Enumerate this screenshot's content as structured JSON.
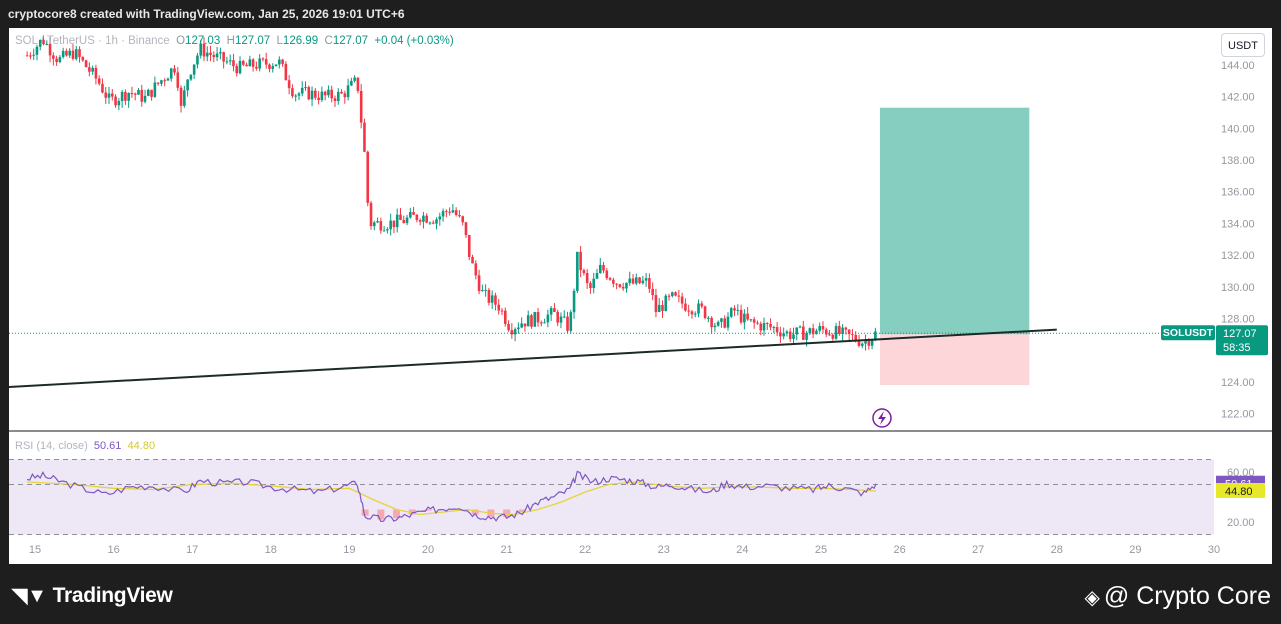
{
  "header": {
    "text": "cryptocore8 created with TradingView.com, Jan 25, 2026 19:01 UTC+6"
  },
  "legend": {
    "symbol": "SOL / TetherUS · 1h · Binance",
    "open_label": "O",
    "open": "127.03",
    "high_label": "H",
    "high": "127.07",
    "low_label": "L",
    "low": "126.99",
    "close_label": "C",
    "close": "127.07",
    "change": "+0.04 (+0.03%)"
  },
  "unit_button": "USDT",
  "price_tag": {
    "symbol": "SOLUSDT",
    "price": "127.07",
    "countdown": "58:35"
  },
  "rsi": {
    "label": "RSI (14, close)",
    "value": "50.61",
    "ma_value": "44.80",
    "levels": [
      "60.00",
      "20.00"
    ]
  },
  "footer": {
    "tv_logo": "TradingView",
    "watermark": "@ Crypto Core"
  },
  "colors": {
    "up": "#089981",
    "down": "#f23645",
    "rsi_line": "#7e57c2",
    "rsi_ma": "#e6d43a",
    "target_zone": "#86cec0",
    "stop_zone": "#fdd6da",
    "trendline": "#1c2b26",
    "price_tag": "#089981"
  },
  "chart_data": {
    "type": "candlestick",
    "symbol": "SOLUSDT",
    "timeframe": "1h",
    "x_ticks": [
      "15",
      "16",
      "17",
      "18",
      "19",
      "20",
      "21",
      "22",
      "23",
      "24",
      "25",
      "26",
      "27",
      "28",
      "29",
      "30"
    ],
    "y_ticks": [
      "122.00",
      "124.00",
      "126.00",
      "128.00",
      "130.00",
      "132.00",
      "134.00",
      "136.00",
      "138.00",
      "140.00",
      "142.00",
      "144.00"
    ],
    "ylim": [
      120.9,
      146.5
    ],
    "price_path": [
      [
        14.9,
        144.6
      ],
      [
        15.1,
        145.6
      ],
      [
        15.3,
        144.3
      ],
      [
        15.5,
        144.8
      ],
      [
        15.8,
        143.0
      ],
      [
        15.95,
        141.7
      ],
      [
        16.2,
        142.3
      ],
      [
        16.4,
        141.9
      ],
      [
        16.6,
        143.0
      ],
      [
        16.8,
        144.0
      ],
      [
        16.85,
        141.0
      ],
      [
        16.95,
        143.4
      ],
      [
        17.1,
        145.0
      ],
      [
        17.3,
        144.5
      ],
      [
        17.6,
        143.8
      ],
      [
        17.8,
        144.0
      ],
      [
        18.1,
        144.2
      ],
      [
        18.3,
        142.2
      ],
      [
        18.5,
        142.2
      ],
      [
        18.7,
        142.0
      ],
      [
        18.9,
        142.1
      ],
      [
        19.1,
        143.0
      ],
      [
        19.2,
        138.0
      ],
      [
        19.25,
        134.0
      ],
      [
        19.5,
        134.0
      ],
      [
        19.7,
        134.2
      ],
      [
        19.9,
        134.5
      ],
      [
        20.1,
        134.3
      ],
      [
        20.3,
        135.0
      ],
      [
        20.45,
        133.8
      ],
      [
        20.55,
        131.5
      ],
      [
        20.7,
        129.5
      ],
      [
        20.9,
        128.8
      ],
      [
        21.05,
        127.4
      ],
      [
        21.2,
        127.8
      ],
      [
        21.4,
        128.0
      ],
      [
        21.6,
        128.3
      ],
      [
        21.8,
        127.4
      ],
      [
        21.9,
        131.8
      ],
      [
        22.05,
        129.7
      ],
      [
        22.2,
        131.2
      ],
      [
        22.4,
        130.3
      ],
      [
        22.6,
        130.2
      ],
      [
        22.8,
        130.3
      ],
      [
        22.9,
        128.5
      ],
      [
        23.1,
        129.3
      ],
      [
        23.3,
        128.8
      ],
      [
        23.5,
        128.5
      ],
      [
        23.7,
        127.4
      ],
      [
        23.9,
        128.5
      ],
      [
        24.05,
        127.8
      ],
      [
        24.2,
        127.6
      ],
      [
        24.4,
        127.4
      ],
      [
        24.6,
        127.0
      ],
      [
        24.8,
        127.1
      ],
      [
        25.0,
        127.3
      ],
      [
        25.2,
        127.1
      ],
      [
        25.4,
        126.8
      ],
      [
        25.55,
        126.5
      ],
      [
        25.7,
        127.07
      ]
    ],
    "trendline": {
      "from": [
        14.0,
        123.5
      ],
      "to": [
        28.0,
        127.3
      ]
    },
    "long_position": {
      "x_start": 25.75,
      "x_end": 27.65,
      "entry": 127.0,
      "target": 141.3,
      "stop": 123.8
    },
    "last_price": 127.07,
    "rsi_series": {
      "levels": [
        60,
        20
      ],
      "range": [
        10,
        75
      ],
      "path": [
        [
          14.9,
          55
        ],
        [
          15.1,
          57
        ],
        [
          15.3,
          53
        ],
        [
          15.6,
          47
        ],
        [
          15.9,
          42
        ],
        [
          16.2,
          48
        ],
        [
          16.5,
          49
        ],
        [
          16.9,
          44
        ],
        [
          17.1,
          53
        ],
        [
          17.4,
          51
        ],
        [
          17.7,
          52
        ],
        [
          18.0,
          48
        ],
        [
          18.3,
          46
        ],
        [
          18.6,
          44
        ],
        [
          18.9,
          48
        ],
        [
          19.1,
          51
        ],
        [
          19.2,
          25
        ],
        [
          19.4,
          22
        ],
        [
          19.6,
          23
        ],
        [
          19.8,
          26
        ],
        [
          20.0,
          29
        ],
        [
          20.2,
          31
        ],
        [
          20.4,
          33
        ],
        [
          20.6,
          26
        ],
        [
          20.8,
          24
        ],
        [
          21.0,
          24
        ],
        [
          21.2,
          28
        ],
        [
          21.4,
          36
        ],
        [
          21.6,
          40
        ],
        [
          21.8,
          46
        ],
        [
          21.9,
          58
        ],
        [
          22.1,
          52
        ],
        [
          22.3,
          55
        ],
        [
          22.5,
          54
        ],
        [
          22.7,
          52
        ],
        [
          22.9,
          48
        ],
        [
          23.1,
          50
        ],
        [
          23.3,
          47
        ],
        [
          23.6,
          44
        ],
        [
          23.8,
          51
        ],
        [
          24.0,
          48
        ],
        [
          24.3,
          49
        ],
        [
          24.6,
          47
        ],
        [
          24.9,
          46
        ],
        [
          25.1,
          49
        ],
        [
          25.3,
          47
        ],
        [
          25.55,
          43
        ],
        [
          25.7,
          50.61
        ]
      ],
      "ma_path": [
        [
          14.9,
          52
        ],
        [
          15.5,
          50
        ],
        [
          16.0,
          47
        ],
        [
          16.5,
          46
        ],
        [
          17.0,
          50
        ],
        [
          17.5,
          51
        ],
        [
          18.0,
          49
        ],
        [
          18.5,
          46
        ],
        [
          19.0,
          47
        ],
        [
          19.3,
          38
        ],
        [
          19.6,
          30
        ],
        [
          19.9,
          26
        ],
        [
          20.2,
          28
        ],
        [
          20.5,
          30
        ],
        [
          20.8,
          27
        ],
        [
          21.1,
          26
        ],
        [
          21.4,
          30
        ],
        [
          21.7,
          36
        ],
        [
          22.0,
          44
        ],
        [
          22.3,
          50
        ],
        [
          22.6,
          52
        ],
        [
          22.9,
          50
        ],
        [
          23.2,
          48
        ],
        [
          23.5,
          47
        ],
        [
          23.8,
          48
        ],
        [
          24.2,
          48
        ],
        [
          24.6,
          47
        ],
        [
          25.0,
          47
        ],
        [
          25.4,
          46
        ],
        [
          25.7,
          44.8
        ]
      ]
    }
  }
}
